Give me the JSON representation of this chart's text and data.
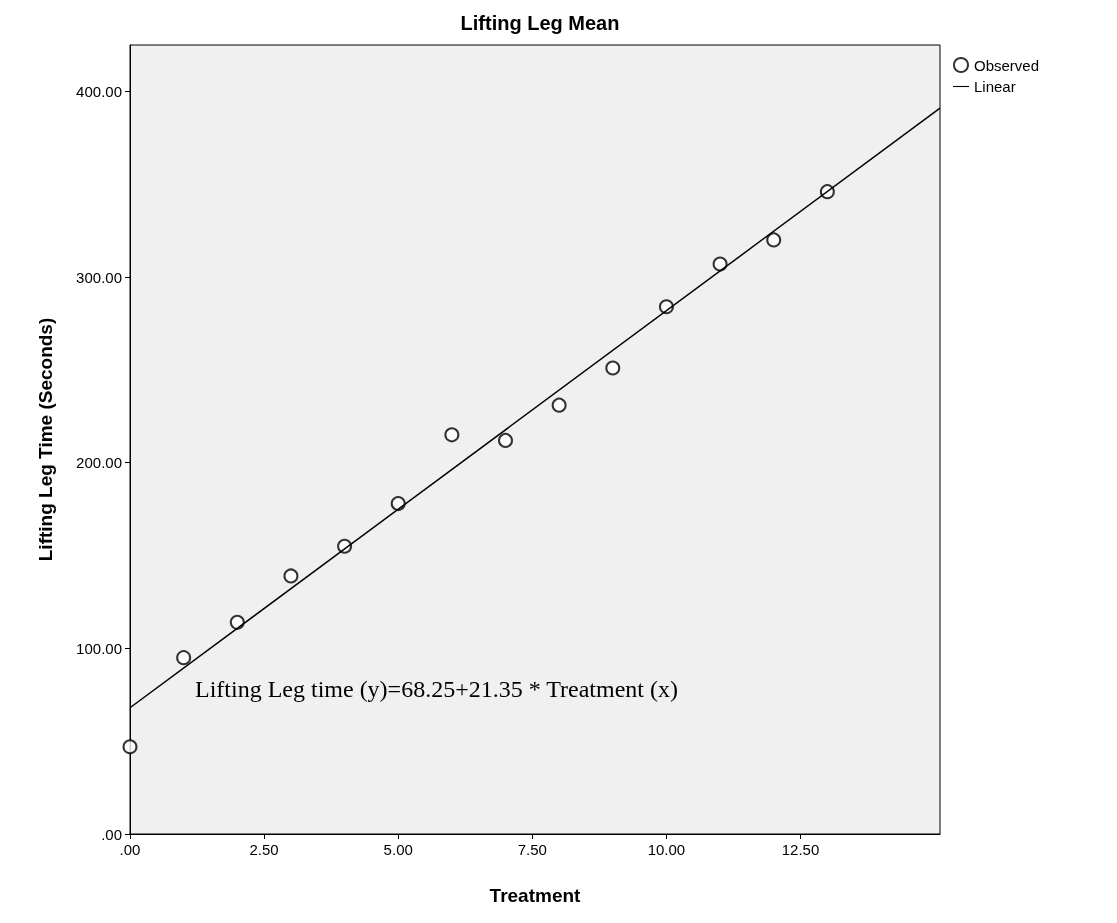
{
  "chart_data": {
    "type": "scatter",
    "title": "Lifting Leg Mean",
    "xlabel": "Treatment",
    "ylabel": "Lifting Leg Time (Seconds)",
    "xlim": [
      0,
      15.1
    ],
    "ylim": [
      0,
      425
    ],
    "xticks": [
      {
        "value": 0,
        "label": ".00"
      },
      {
        "value": 2.5,
        "label": "2.50"
      },
      {
        "value": 5,
        "label": "5.00"
      },
      {
        "value": 7.5,
        "label": "7.50"
      },
      {
        "value": 10,
        "label": "10.00"
      },
      {
        "value": 12.5,
        "label": "12.50"
      }
    ],
    "yticks": [
      {
        "value": 0,
        "label": ".00"
      },
      {
        "value": 100,
        "label": "100.00"
      },
      {
        "value": 200,
        "label": "200.00"
      },
      {
        "value": 300,
        "label": "300.00"
      },
      {
        "value": 400,
        "label": "400.00"
      }
    ],
    "series": [
      {
        "name": "Observed",
        "marker": "circle",
        "color": "#000000",
        "x": [
          0,
          1,
          2,
          3,
          4,
          5,
          6,
          7,
          8,
          9,
          10,
          11,
          12,
          13
        ],
        "values": [
          47,
          95,
          114,
          139,
          155,
          178,
          215,
          212,
          231,
          251,
          284,
          307,
          320,
          346
        ]
      },
      {
        "name": "Linear",
        "type": "line",
        "marker": "none",
        "line_style": "solid",
        "color": "#000000",
        "x": [
          0,
          15.1
        ],
        "values": [
          68,
          391
        ]
      }
    ],
    "annotations": [
      "Lifting Leg time (y)=68.25+21.35 * Treatment (x)"
    ],
    "legend": "top right",
    "grid": false
  }
}
